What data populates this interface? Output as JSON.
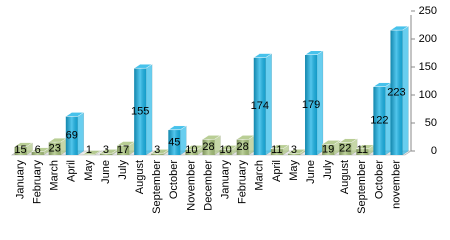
{
  "chart_data": {
    "type": "bar3d",
    "categories": [
      "January",
      "February",
      "March",
      "April",
      "May",
      "June",
      "July",
      "August",
      "September",
      "October",
      "November",
      "December",
      "January",
      "February",
      "March",
      "April",
      "May",
      "June",
      "July",
      "August",
      "September",
      "October",
      "november"
    ],
    "values": [
      15,
      6,
      23,
      69,
      1,
      3,
      17,
      155,
      3,
      45,
      10,
      28,
      10,
      28,
      174,
      11,
      3,
      179,
      19,
      22,
      11,
      122,
      223
    ],
    "colors": [
      "#a7c27a",
      "#a7c27a",
      "#a7c27a",
      "#19b3e6",
      "#a7c27a",
      "#a7c27a",
      "#a7c27a",
      "#19b3e6",
      "#a7c27a",
      "#19b3e6",
      "#a7c27a",
      "#a7c27a",
      "#a7c27a",
      "#a7c27a",
      "#19b3e6",
      "#a7c27a",
      "#a7c27a",
      "#19b3e6",
      "#a7c27a",
      "#a7c27a",
      "#a7c27a",
      "#19b3e6",
      "#19b3e6"
    ],
    "ylim": [
      0,
      250
    ],
    "yticks": [
      0,
      50,
      100,
      150,
      200,
      250
    ],
    "axis_side": "right"
  }
}
